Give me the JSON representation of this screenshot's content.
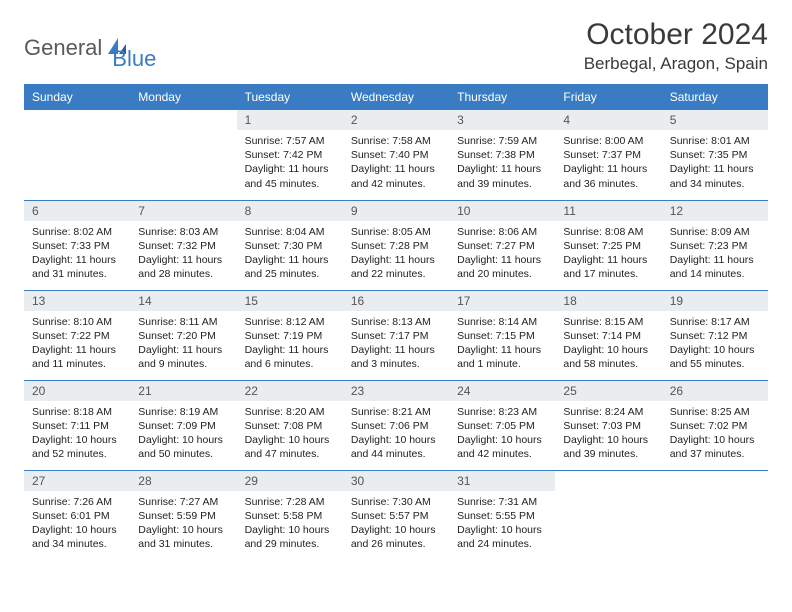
{
  "brand": {
    "part1": "General",
    "part2": "Blue"
  },
  "title": "October 2024",
  "location": "Berbegal, Aragon, Spain",
  "colors": {
    "header_bg": "#3a7cc4",
    "header_text": "#ffffff",
    "daynum_bg": "#e9edf0",
    "rule": "#3a7cc4",
    "brand_gray": "#5a5a5a",
    "brand_blue": "#3a7cc4"
  },
  "weekdays": [
    "Sunday",
    "Monday",
    "Tuesday",
    "Wednesday",
    "Thursday",
    "Friday",
    "Saturday"
  ],
  "weeks": [
    [
      null,
      null,
      {
        "n": "1",
        "sr": "7:57 AM",
        "ss": "7:42 PM",
        "dl": "11 hours and 45 minutes."
      },
      {
        "n": "2",
        "sr": "7:58 AM",
        "ss": "7:40 PM",
        "dl": "11 hours and 42 minutes."
      },
      {
        "n": "3",
        "sr": "7:59 AM",
        "ss": "7:38 PM",
        "dl": "11 hours and 39 minutes."
      },
      {
        "n": "4",
        "sr": "8:00 AM",
        "ss": "7:37 PM",
        "dl": "11 hours and 36 minutes."
      },
      {
        "n": "5",
        "sr": "8:01 AM",
        "ss": "7:35 PM",
        "dl": "11 hours and 34 minutes."
      }
    ],
    [
      {
        "n": "6",
        "sr": "8:02 AM",
        "ss": "7:33 PM",
        "dl": "11 hours and 31 minutes."
      },
      {
        "n": "7",
        "sr": "8:03 AM",
        "ss": "7:32 PM",
        "dl": "11 hours and 28 minutes."
      },
      {
        "n": "8",
        "sr": "8:04 AM",
        "ss": "7:30 PM",
        "dl": "11 hours and 25 minutes."
      },
      {
        "n": "9",
        "sr": "8:05 AM",
        "ss": "7:28 PM",
        "dl": "11 hours and 22 minutes."
      },
      {
        "n": "10",
        "sr": "8:06 AM",
        "ss": "7:27 PM",
        "dl": "11 hours and 20 minutes."
      },
      {
        "n": "11",
        "sr": "8:08 AM",
        "ss": "7:25 PM",
        "dl": "11 hours and 17 minutes."
      },
      {
        "n": "12",
        "sr": "8:09 AM",
        "ss": "7:23 PM",
        "dl": "11 hours and 14 minutes."
      }
    ],
    [
      {
        "n": "13",
        "sr": "8:10 AM",
        "ss": "7:22 PM",
        "dl": "11 hours and 11 minutes."
      },
      {
        "n": "14",
        "sr": "8:11 AM",
        "ss": "7:20 PM",
        "dl": "11 hours and 9 minutes."
      },
      {
        "n": "15",
        "sr": "8:12 AM",
        "ss": "7:19 PM",
        "dl": "11 hours and 6 minutes."
      },
      {
        "n": "16",
        "sr": "8:13 AM",
        "ss": "7:17 PM",
        "dl": "11 hours and 3 minutes."
      },
      {
        "n": "17",
        "sr": "8:14 AM",
        "ss": "7:15 PM",
        "dl": "11 hours and 1 minute."
      },
      {
        "n": "18",
        "sr": "8:15 AM",
        "ss": "7:14 PM",
        "dl": "10 hours and 58 minutes."
      },
      {
        "n": "19",
        "sr": "8:17 AM",
        "ss": "7:12 PM",
        "dl": "10 hours and 55 minutes."
      }
    ],
    [
      {
        "n": "20",
        "sr": "8:18 AM",
        "ss": "7:11 PM",
        "dl": "10 hours and 52 minutes."
      },
      {
        "n": "21",
        "sr": "8:19 AM",
        "ss": "7:09 PM",
        "dl": "10 hours and 50 minutes."
      },
      {
        "n": "22",
        "sr": "8:20 AM",
        "ss": "7:08 PM",
        "dl": "10 hours and 47 minutes."
      },
      {
        "n": "23",
        "sr": "8:21 AM",
        "ss": "7:06 PM",
        "dl": "10 hours and 44 minutes."
      },
      {
        "n": "24",
        "sr": "8:23 AM",
        "ss": "7:05 PM",
        "dl": "10 hours and 42 minutes."
      },
      {
        "n": "25",
        "sr": "8:24 AM",
        "ss": "7:03 PM",
        "dl": "10 hours and 39 minutes."
      },
      {
        "n": "26",
        "sr": "8:25 AM",
        "ss": "7:02 PM",
        "dl": "10 hours and 37 minutes."
      }
    ],
    [
      {
        "n": "27",
        "sr": "7:26 AM",
        "ss": "6:01 PM",
        "dl": "10 hours and 34 minutes."
      },
      {
        "n": "28",
        "sr": "7:27 AM",
        "ss": "5:59 PM",
        "dl": "10 hours and 31 minutes."
      },
      {
        "n": "29",
        "sr": "7:28 AM",
        "ss": "5:58 PM",
        "dl": "10 hours and 29 minutes."
      },
      {
        "n": "30",
        "sr": "7:30 AM",
        "ss": "5:57 PM",
        "dl": "10 hours and 26 minutes."
      },
      {
        "n": "31",
        "sr": "7:31 AM",
        "ss": "5:55 PM",
        "dl": "10 hours and 24 minutes."
      },
      null,
      null
    ]
  ],
  "labels": {
    "sunrise": "Sunrise:",
    "sunset": "Sunset:",
    "daylight": "Daylight:"
  }
}
